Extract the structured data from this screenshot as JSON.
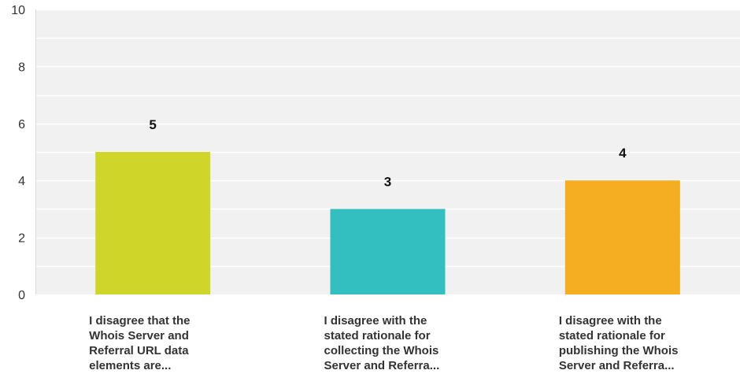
{
  "chart_data": {
    "type": "bar",
    "title": "",
    "xlabel": "",
    "ylabel": "",
    "categories": [
      "I disagree that the\nWhois Server and\nReferral URL data\nelements are...",
      "I disagree with the\nstated rationale for\ncollecting the Whois\nServer and Referra...",
      "I disagree with the\nstated rationale for\npublishing the Whois\nServer and Referra..."
    ],
    "values": [
      5,
      3,
      4
    ],
    "colors": [
      "#d0d52a",
      "#33bfbf",
      "#f5ae22"
    ],
    "ylim": [
      0,
      10
    ],
    "yticks": [
      0,
      2,
      4,
      6,
      8,
      10
    ],
    "grid": true,
    "background": "#f1f1f1",
    "gridline_color": "#ffffff",
    "legend": "none"
  }
}
